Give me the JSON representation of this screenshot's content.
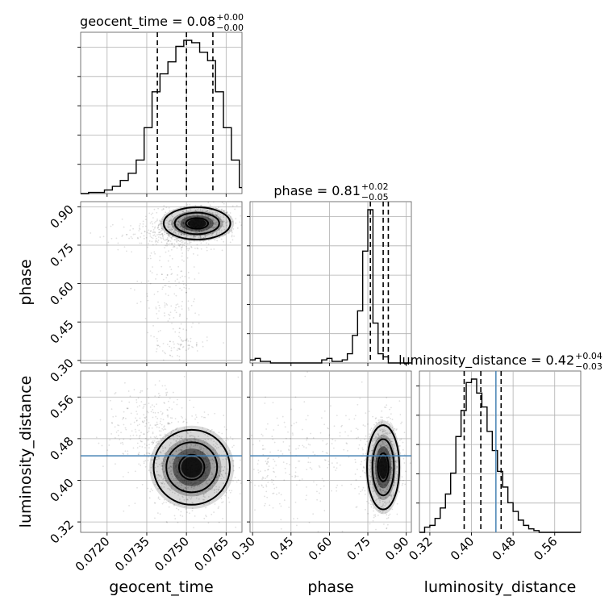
{
  "chart_data": {
    "type": "corner",
    "parameters": [
      "geocent_time",
      "phase",
      "luminosity_distance"
    ],
    "titles": [
      {
        "name": "geocent_time",
        "median": "0.08",
        "plus": "+0.00",
        "minus": "−0.00"
      },
      {
        "name": "phase",
        "median": "0.81",
        "plus": "+0.02",
        "minus": "−0.05"
      },
      {
        "name": "luminosity_distance",
        "median": "0.42",
        "plus": "+0.04",
        "minus": "−0.03"
      }
    ],
    "axis_ranges": {
      "geocent_time": [
        0.071,
        0.0771
      ],
      "phase": [
        0.29,
        0.92
      ],
      "luminosity_distance": [
        0.3,
        0.61
      ]
    },
    "ticks": {
      "geocent_time": [
        "0.0720",
        "0.0735",
        "0.0750",
        "0.0765"
      ],
      "phase": [
        "0.30",
        "0.45",
        "0.60",
        "0.75",
        "0.90"
      ],
      "luminosity_distance": [
        "0.32",
        "0.40",
        "0.48",
        "0.56"
      ]
    },
    "truth": {
      "luminosity_distance": 0.447
    },
    "quantiles": {
      "geocent_time": [
        0.0739,
        0.075,
        0.076
      ],
      "phase": [
        0.76,
        0.81,
        0.83
      ],
      "luminosity_distance": [
        0.386,
        0.418,
        0.457
      ]
    },
    "histograms": [
      {
        "param": "geocent_time",
        "bin_start": 0.071,
        "bin_width": 0.0003,
        "counts": [
          0,
          1,
          1,
          3,
          6,
          11,
          17,
          28,
          55,
          85,
          100,
          110,
          123,
          128,
          126,
          118,
          111,
          85,
          55,
          28,
          5
        ]
      },
      {
        "param": "phase",
        "bin_start": 0.29,
        "bin_width": 0.02,
        "counts": [
          2,
          3,
          1,
          1,
          0,
          0,
          0,
          0,
          0,
          0,
          0,
          0,
          0,
          0,
          2,
          3,
          1,
          1,
          2,
          6,
          18,
          34,
          73,
          100,
          26,
          6,
          4,
          0,
          0,
          0,
          0,
          0
        ]
      },
      {
        "param": "luminosity_distance",
        "bin_start": 0.3,
        "bin_width": 0.01,
        "counts": [
          0,
          3,
          4,
          8,
          14,
          22,
          34,
          55,
          70,
          86,
          88,
          80,
          72,
          58,
          47,
          35,
          26,
          17,
          12,
          7,
          4,
          2,
          1,
          0,
          0,
          0,
          0,
          0,
          0,
          0,
          0
        ]
      }
    ],
    "scatter_clusters": [
      {
        "x": "geocent_time",
        "y": "phase",
        "blobs": [
          {
            "cx": 0.0754,
            "cy": 0.835,
            "sx": 0.0007,
            "sy": 0.035,
            "n": 700
          },
          {
            "cx": 0.0745,
            "cy": 0.79,
            "sx": 0.001,
            "sy": 0.03,
            "n": 300
          },
          {
            "cx": 0.0745,
            "cy": 0.6,
            "sx": 0.0006,
            "sy": 0.14,
            "n": 200
          },
          {
            "cx": 0.0748,
            "cy": 0.36,
            "sx": 0.0005,
            "sy": 0.02,
            "n": 60
          }
        ]
      },
      {
        "x": "geocent_time",
        "y": "luminosity_distance",
        "blobs": [
          {
            "cx": 0.0752,
            "cy": 0.425,
            "sx": 0.0008,
            "sy": 0.04,
            "n": 900
          },
          {
            "cx": 0.0737,
            "cy": 0.5,
            "sx": 0.0009,
            "sy": 0.045,
            "n": 300
          }
        ]
      },
      {
        "x": "phase",
        "y": "luminosity_distance",
        "blobs": [
          {
            "cx": 0.81,
            "cy": 0.425,
            "sx": 0.035,
            "sy": 0.045,
            "n": 700
          },
          {
            "cx": 0.55,
            "cy": 0.44,
            "sx": 0.15,
            "sy": 0.06,
            "n": 250
          },
          {
            "cx": 0.35,
            "cy": 0.42,
            "sx": 0.03,
            "sy": 0.04,
            "n": 60
          }
        ]
      }
    ]
  }
}
